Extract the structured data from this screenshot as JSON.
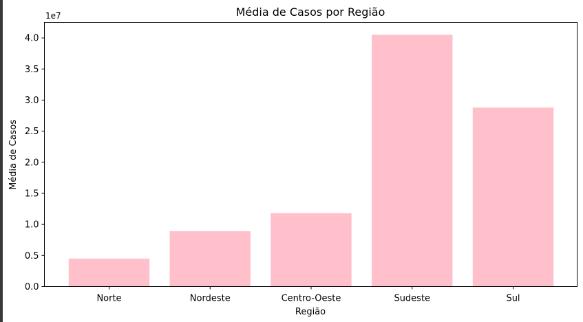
{
  "chart_data": {
    "type": "bar",
    "title": "Média de Casos por Região",
    "xlabel": "Região",
    "ylabel": "Média de Casos",
    "categories": [
      "Norte",
      "Nordeste",
      "Centro-Oeste",
      "Sudeste",
      "Sul"
    ],
    "values": [
      4500000,
      8900000,
      11800000,
      40500000,
      28800000
    ],
    "ylim": [
      0,
      42500000
    ],
    "yticks": [
      0,
      5000000,
      10000000,
      15000000,
      20000000,
      25000000,
      30000000,
      35000000,
      40000000
    ],
    "ytick_labels": [
      "0.0",
      "0.5",
      "1.0",
      "1.5",
      "2.0",
      "2.5",
      "3.0",
      "3.5",
      "4.0"
    ],
    "y_offset_label": "1e7",
    "bar_color": "#ffc0cb",
    "grid": false,
    "legend": false
  }
}
